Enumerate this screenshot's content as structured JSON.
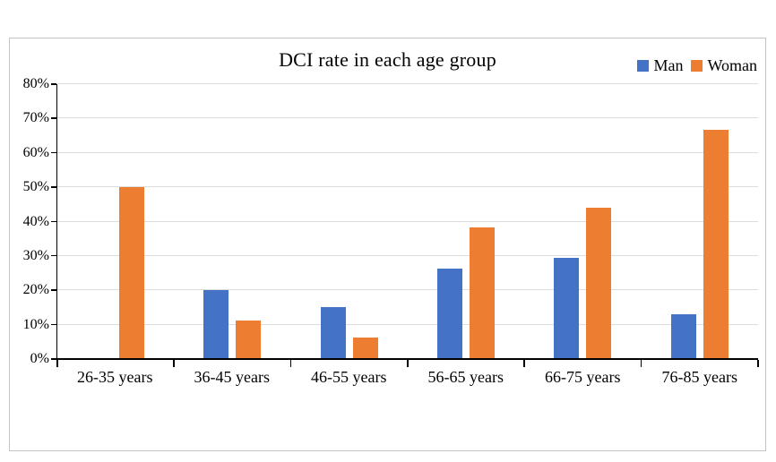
{
  "chart_data": {
    "type": "bar",
    "title": "DCI rate in each age group",
    "categories": [
      "26-35 years",
      "36-45 years",
      "46-55 years",
      "56-65 years",
      "66-75 years",
      "76-85 years"
    ],
    "series": [
      {
        "name": "Man",
        "color": "#4472C4",
        "values": [
          0,
          20,
          15,
          26.3,
          29.4,
          13
        ]
      },
      {
        "name": "Woman",
        "color": "#ED7D31",
        "values": [
          50,
          11.1,
          6.3,
          38.2,
          44.1,
          66.7
        ]
      }
    ],
    "ylim": [
      0,
      80
    ],
    "y_tick_step": 10,
    "y_tick_labels": [
      "0%",
      "10%",
      "20%",
      "30%",
      "40%",
      "50%",
      "60%",
      "70%",
      "80%"
    ],
    "xlabel": "",
    "ylabel": "",
    "grid": true,
    "legend_position": "top-right",
    "styles": {
      "grid_color": "#dcdcdc",
      "axis_color": "#000000",
      "figure_border_color": "#c3c3c3",
      "background": "#ffffff",
      "text_color": "#000000"
    }
  }
}
